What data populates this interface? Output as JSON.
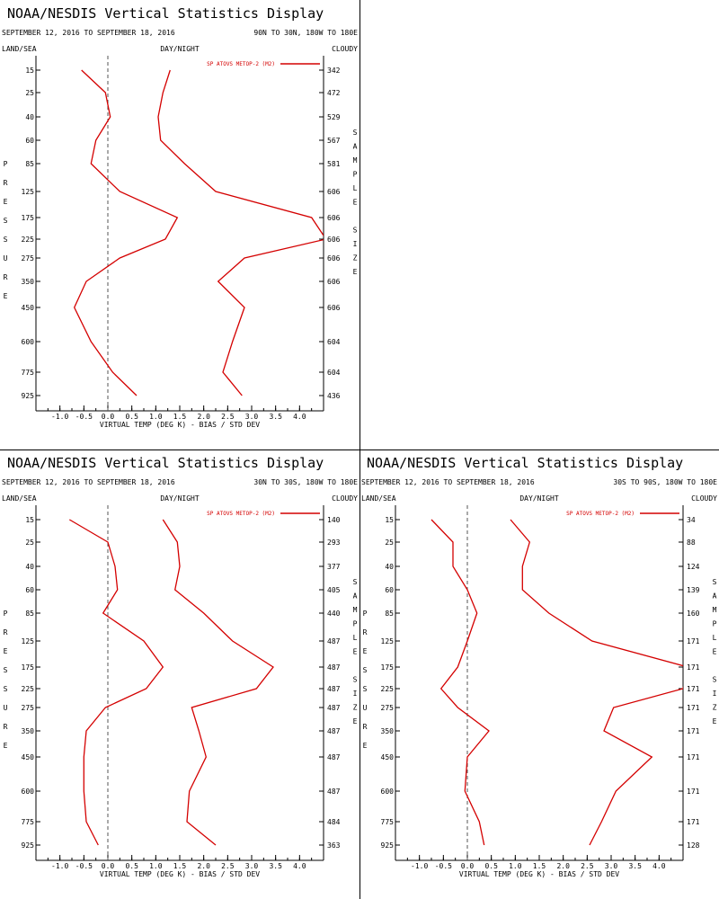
{
  "colors": {
    "series": "#d40000",
    "axis": "#000000",
    "zero_line": "#555555",
    "text": "#000000"
  },
  "pressure_levels": [
    "15",
    "25",
    "40",
    "60",
    "85",
    "125",
    "175",
    "225",
    "275",
    "350",
    "450",
    "600",
    "775",
    "925"
  ],
  "x_ticks": [
    "-1.0",
    "-0.5",
    "0.0",
    "0.5",
    "1.0",
    "1.5",
    "2.0",
    "2.5",
    "3.0",
    "3.5",
    "4.0"
  ],
  "labels": {
    "land_sea": "LAND/SEA",
    "day_night": "DAY/NIGHT",
    "cloudy": "CLOUDY",
    "y_axis_letters": [
      "P",
      "R",
      "E",
      "S",
      "S",
      "U",
      "R",
      "E"
    ],
    "right_axis_letters": [
      "S",
      "A",
      "M",
      "P",
      "L",
      "E",
      "",
      "S",
      "I",
      "Z",
      "E"
    ],
    "x_axis_label": "VIRTUAL TEMP (DEG K) - BIAS / STD DEV",
    "legend": "SP ATOVS METOP-2 (M2)"
  },
  "chart_data": [
    {
      "type": "line",
      "title": "NOAA/NESDIS Vertical Statistics Display",
      "date_range": "SEPTEMBER 12, 2016 TO SEPTEMBER 18, 2016",
      "region": "90N TO 30N, 180W TO 180E",
      "xlim": [
        -1.5,
        4.5
      ],
      "y": [
        "15",
        "25",
        "40",
        "60",
        "85",
        "125",
        "175",
        "225",
        "275",
        "350",
        "450",
        "600",
        "775",
        "925"
      ],
      "series": [
        {
          "name": "SP ATOVS METOP-2 (M2)",
          "values": [
            -0.55,
            -0.05,
            0.05,
            -0.25,
            -0.35,
            0.25,
            1.45,
            1.2,
            0.25,
            -0.45,
            -0.7,
            -0.35,
            0.1,
            0.6
          ]
        },
        {
          "values": [
            1.3,
            1.15,
            1.05,
            1.1,
            1.6,
            2.25,
            4.25,
            4.55,
            2.85,
            2.3,
            2.85,
            2.6,
            2.4,
            2.8
          ]
        }
      ],
      "sample_size": [
        "342",
        "472",
        "529",
        "567",
        "581",
        "606",
        "606",
        "606",
        "606",
        "606",
        "606",
        "604",
        "604",
        "436"
      ]
    },
    {
      "type": "line",
      "title": "NOAA/NESDIS Vertical Statistics Display",
      "date_range": "SEPTEMBER 12, 2016 TO SEPTEMBER 18, 2016",
      "region": "30N TO 30S, 180W TO 180E",
      "xlim": [
        -1.5,
        4.5
      ],
      "y": [
        "15",
        "25",
        "40",
        "60",
        "85",
        "125",
        "175",
        "225",
        "275",
        "350",
        "450",
        "600",
        "775",
        "925"
      ],
      "series": [
        {
          "name": "SP ATOVS METOP-2 (M2)",
          "values": [
            -0.8,
            0.0,
            0.15,
            0.2,
            -0.1,
            0.75,
            1.15,
            0.8,
            -0.05,
            -0.45,
            -0.5,
            -0.5,
            -0.45,
            -0.2
          ]
        },
        {
          "values": [
            1.15,
            1.45,
            1.5,
            1.4,
            2.0,
            2.6,
            3.45,
            3.1,
            1.75,
            1.9,
            2.05,
            1.7,
            1.65,
            2.25
          ]
        }
      ],
      "sample_size": [
        "140",
        "293",
        "377",
        "405",
        "440",
        "487",
        "487",
        "487",
        "487",
        "487",
        "487",
        "487",
        "484",
        "363"
      ]
    },
    {
      "type": "line",
      "title": "NOAA/NESDIS Vertical Statistics Display",
      "date_range": "SEPTEMBER 12, 2016 TO SEPTEMBER 18, 2016",
      "region": "30S TO 90S, 180W TO 180E",
      "xlim": [
        -1.5,
        4.5
      ],
      "y": [
        "15",
        "25",
        "40",
        "60",
        "85",
        "125",
        "175",
        "225",
        "275",
        "350",
        "450",
        "600",
        "775",
        "925"
      ],
      "series": [
        {
          "name": "SP ATOVS METOP-2 (M2)",
          "values": [
            -0.75,
            -0.3,
            -0.3,
            0.0,
            0.2,
            0.0,
            -0.2,
            -0.55,
            -0.2,
            0.45,
            0.0,
            -0.05,
            0.25,
            0.35
          ]
        },
        {
          "values": [
            0.9,
            1.3,
            1.15,
            1.15,
            1.7,
            2.6,
            4.6,
            4.5,
            3.05,
            2.85,
            3.85,
            3.1,
            2.8,
            2.55
          ]
        }
      ],
      "sample_size": [
        "34",
        "88",
        "124",
        "139",
        "160",
        "171",
        "171",
        "171",
        "171",
        "171",
        "171",
        "171",
        "171",
        "128"
      ]
    }
  ]
}
